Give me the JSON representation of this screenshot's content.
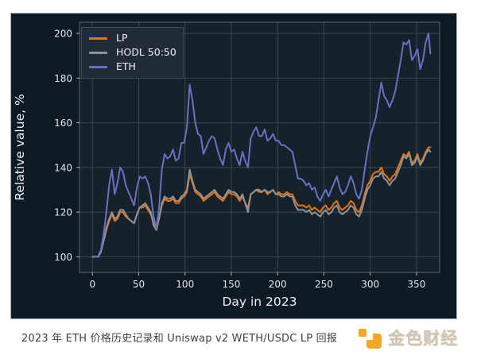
{
  "chart_data": {
    "type": "line",
    "title": "",
    "xlabel": "Day in 2023",
    "ylabel": "Relative value, %",
    "x_ticks": [
      0,
      50,
      100,
      150,
      200,
      250,
      300,
      350
    ],
    "y_ticks": [
      100,
      120,
      140,
      160,
      180,
      200
    ],
    "xlim": [
      -14,
      375
    ],
    "ylim": [
      93,
      205
    ],
    "grid": true,
    "legend_position": "upper left",
    "x": [
      0,
      3,
      6,
      9,
      12,
      15,
      18,
      21,
      24,
      27,
      30,
      33,
      36,
      39,
      42,
      45,
      48,
      51,
      54,
      57,
      60,
      63,
      66,
      69,
      72,
      75,
      78,
      81,
      84,
      87,
      90,
      93,
      96,
      99,
      102,
      105,
      108,
      111,
      114,
      117,
      120,
      123,
      126,
      129,
      132,
      135,
      138,
      141,
      144,
      147,
      150,
      153,
      156,
      159,
      162,
      165,
      168,
      171,
      174,
      177,
      180,
      183,
      186,
      189,
      192,
      195,
      198,
      201,
      204,
      207,
      210,
      213,
      216,
      219,
      222,
      225,
      228,
      231,
      234,
      237,
      240,
      243,
      246,
      249,
      252,
      255,
      258,
      261,
      264,
      267,
      270,
      273,
      276,
      279,
      282,
      285,
      288,
      291,
      294,
      297,
      300,
      303,
      306,
      309,
      312,
      315,
      318,
      321,
      324,
      327,
      330,
      333,
      336,
      339,
      342,
      345,
      348,
      351,
      354,
      357,
      360,
      363,
      365
    ],
    "series": [
      {
        "name": "LP",
        "color": "#e9730f",
        "values": [
          100,
          100,
          100,
          102,
          107,
          112,
          116,
          119,
          116,
          117,
          120,
          120,
          118,
          117,
          116,
          115,
          119,
          122,
          122,
          123,
          121,
          119,
          115,
          113,
          117,
          123,
          126,
          125,
          125,
          126,
          124,
          124,
          126,
          127,
          129,
          137,
          133,
          129,
          128,
          127,
          125,
          126,
          127,
          128,
          129,
          127,
          126,
          125,
          127,
          129,
          128,
          128,
          127,
          125,
          127,
          124,
          122,
          128,
          129,
          130,
          129,
          129,
          130,
          128,
          129,
          130,
          128,
          129,
          128,
          128,
          129,
          128,
          128,
          125,
          123,
          123,
          123,
          122,
          123,
          121,
          122,
          121,
          120,
          122,
          123,
          121,
          122,
          124,
          125,
          122,
          121,
          122,
          123,
          125,
          124,
          121,
          120,
          123,
          128,
          132,
          134,
          137,
          138,
          138,
          140,
          137,
          136,
          134,
          136,
          137,
          140,
          143,
          146,
          145,
          147,
          142,
          143,
          146,
          142,
          144,
          147,
          149,
          149
        ]
      },
      {
        "name": "HODL 50:50",
        "color": "#909396",
        "values": [
          100,
          100,
          100,
          102,
          107,
          113,
          117,
          120,
          117,
          118,
          121,
          121,
          119,
          117,
          116,
          115,
          119,
          122,
          123,
          124,
          122,
          120,
          114,
          112,
          117,
          124,
          127,
          126,
          126,
          127,
          125,
          125,
          127,
          128,
          130,
          139,
          134,
          130,
          129,
          128,
          126,
          127,
          128,
          129,
          130,
          128,
          127,
          126,
          128,
          130,
          129,
          129,
          128,
          126,
          128,
          124,
          120,
          128,
          129,
          130,
          130,
          129,
          130,
          129,
          129,
          130,
          128,
          128,
          127,
          127,
          128,
          127,
          127,
          123,
          121,
          121,
          121,
          120,
          121,
          119,
          120,
          119,
          118,
          120,
          121,
          119,
          120,
          122,
          123,
          120,
          119,
          120,
          121,
          123,
          122,
          119,
          118,
          121,
          126,
          130,
          132,
          135,
          136,
          136,
          138,
          135,
          134,
          132,
          134,
          135,
          138,
          141,
          145,
          144,
          146,
          141,
          142,
          145,
          141,
          143,
          146,
          148,
          147
        ]
      },
      {
        "name": "ETH",
        "color": "#6a70c0",
        "values": [
          100,
          100,
          100,
          103,
          110,
          120,
          132,
          139,
          128,
          133,
          140,
          138,
          132,
          129,
          126,
          123,
          131,
          136,
          135,
          136,
          133,
          128,
          118,
          113,
          122,
          139,
          146,
          144,
          145,
          148,
          143,
          144,
          151,
          151,
          158,
          177,
          170,
          160,
          155,
          154,
          146,
          149,
          152,
          154,
          153,
          148,
          144,
          141,
          148,
          151,
          147,
          148,
          144,
          141,
          147,
          143,
          140,
          153,
          156,
          158,
          154,
          154,
          157,
          152,
          153,
          155,
          152,
          152,
          150,
          150,
          149,
          148,
          147,
          141,
          135,
          135,
          134,
          132,
          133,
          130,
          131,
          127,
          125,
          128,
          130,
          127,
          130,
          133,
          136,
          131,
          128,
          129,
          132,
          136,
          133,
          128,
          126,
          130,
          139,
          147,
          154,
          158,
          162,
          170,
          178,
          172,
          170,
          167,
          170,
          174,
          181,
          188,
          196,
          195,
          197,
          188,
          190,
          193,
          184,
          188,
          196,
          200,
          191
        ]
      }
    ],
    "colors": {
      "figure_bg": "#0e1a23",
      "plot_bg": "#15212b",
      "grid": "#3b4651",
      "spine": "#5a646e",
      "tick": "#aab2b8",
      "tick_label": "#e3e6e8",
      "axis_label": "#edeff0",
      "legend_bg": "#202b35",
      "legend_border": "#424d57",
      "legend_text": "#f1f2f3"
    }
  },
  "footer": {
    "caption": "2023 年 ETH 价格历史记录和 Uniswap v2 WETH/USDC LP 回报",
    "caption_color": "#3f3f3f",
    "brand": "金色财经",
    "brand_color": "#f5a623"
  }
}
